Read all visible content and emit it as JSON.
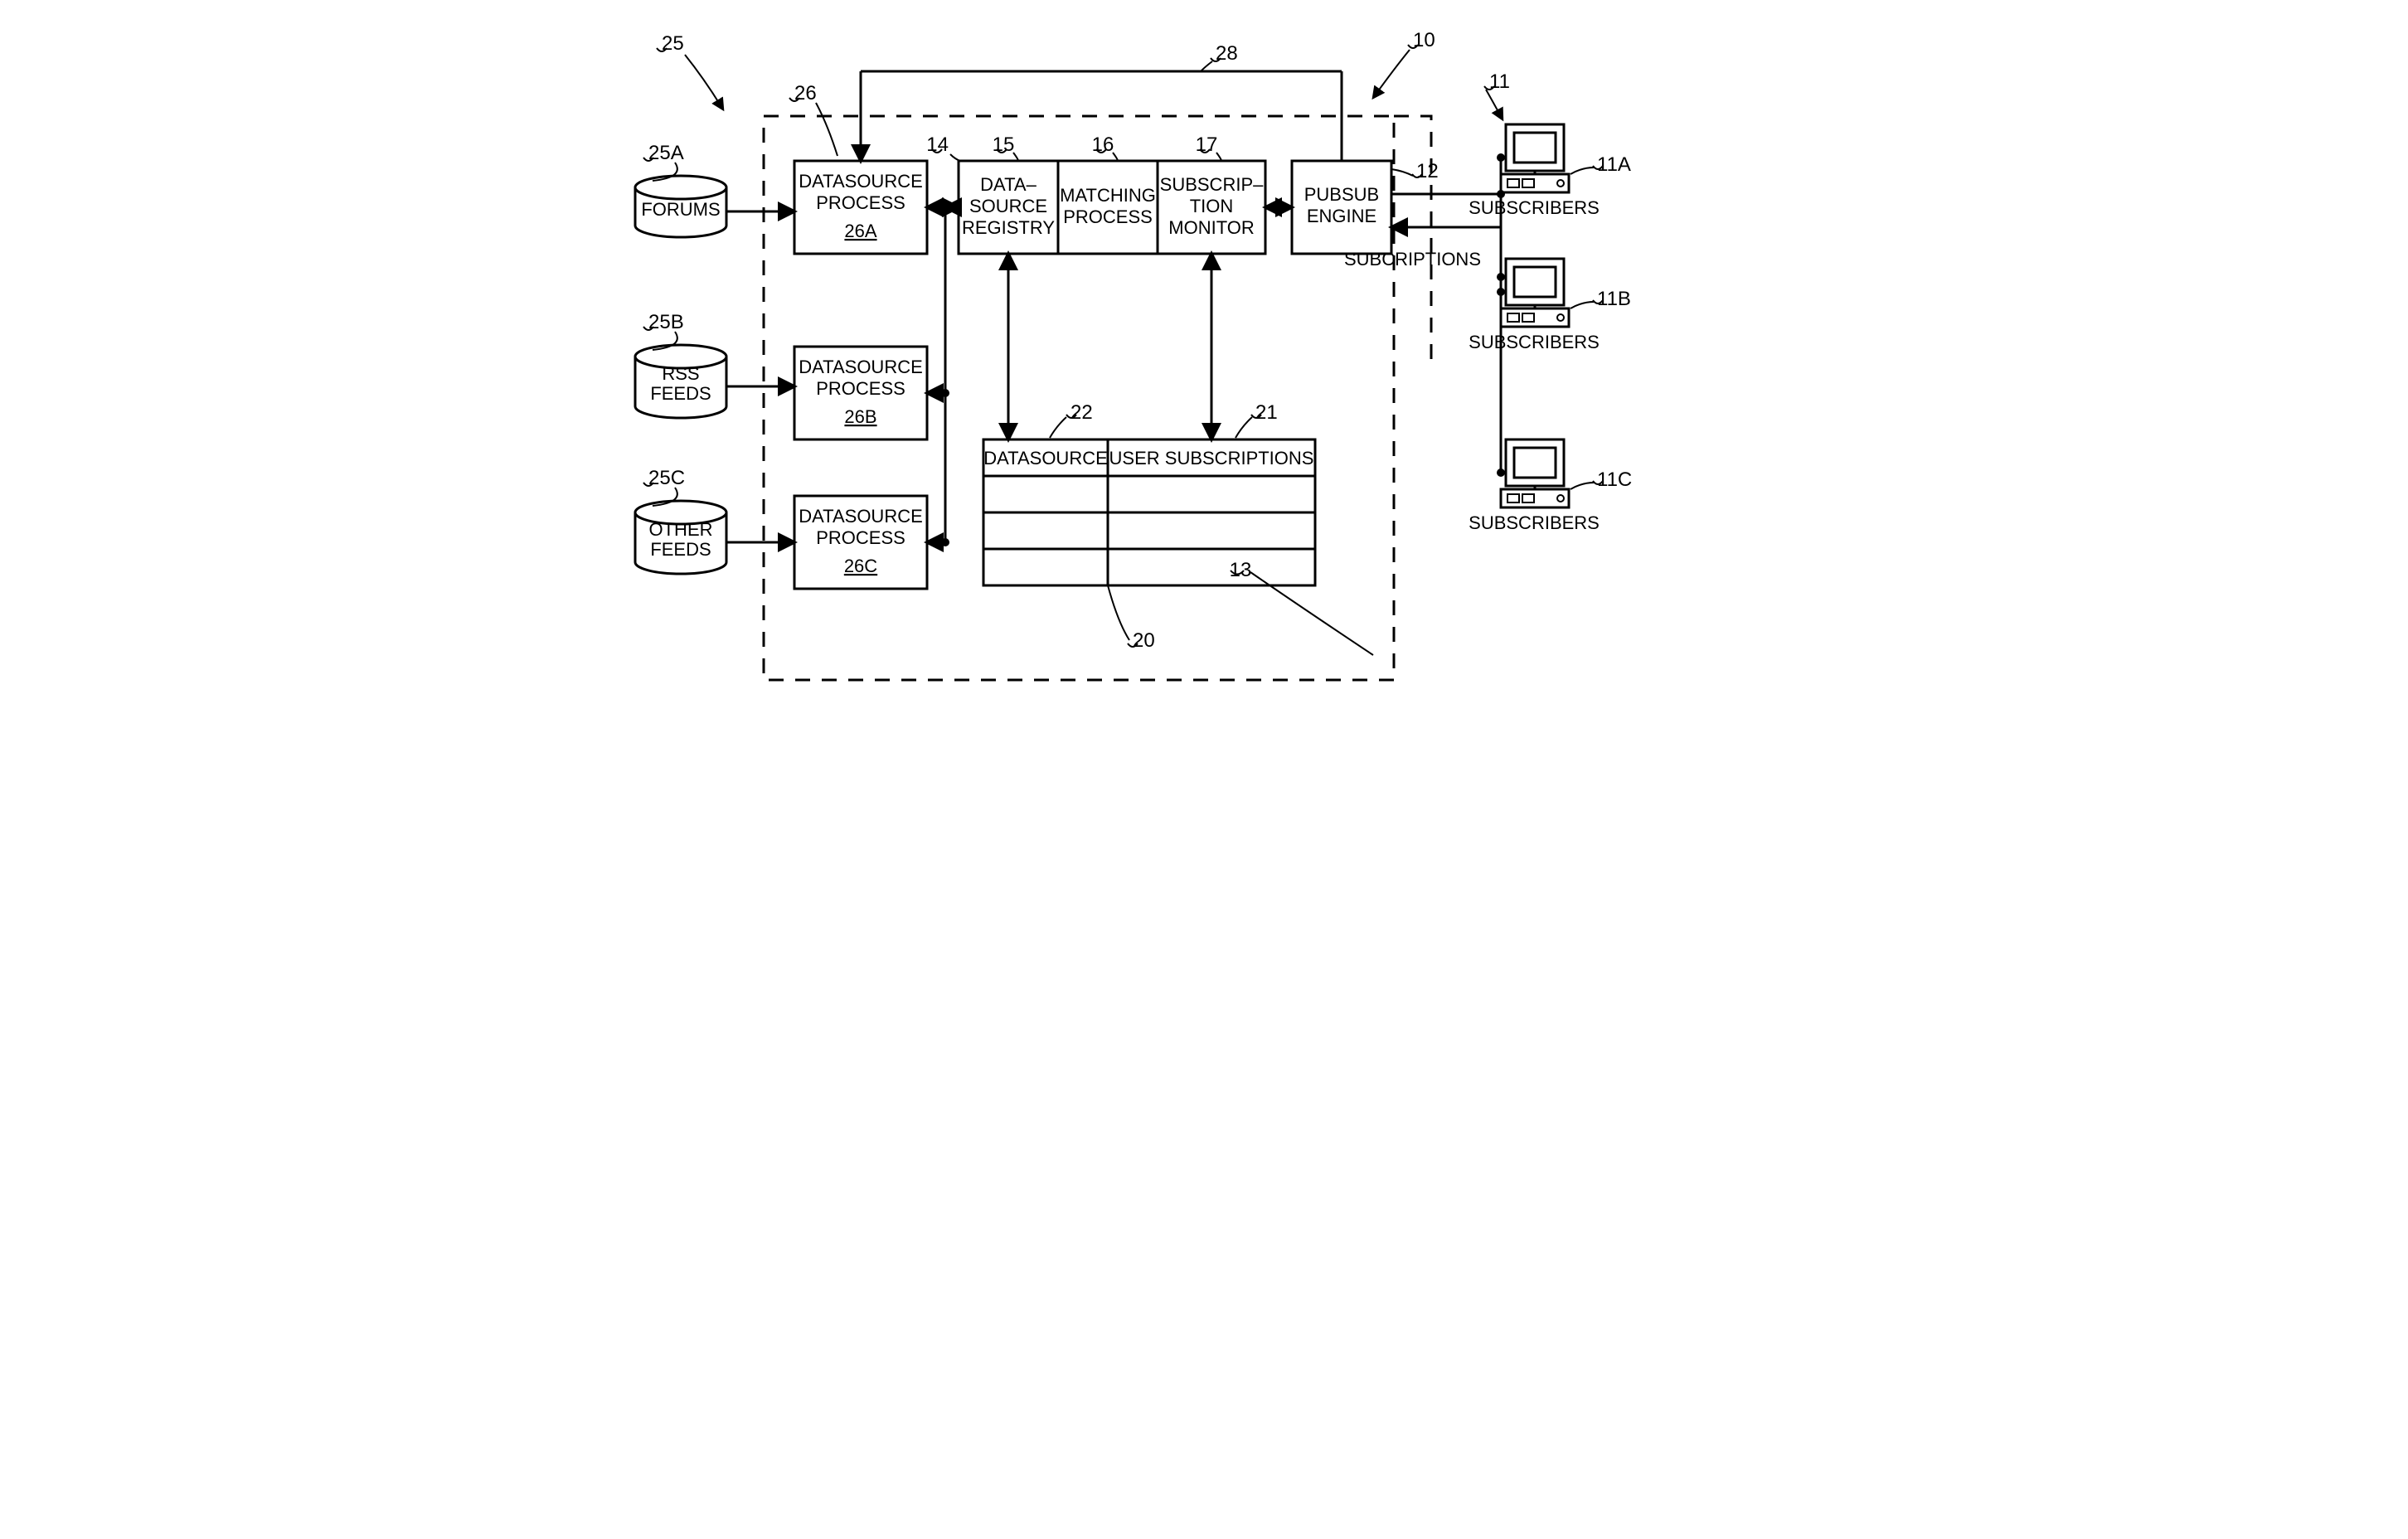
{
  "type": "flowchart",
  "background_color": "#ffffff",
  "stroke_color": "#000000",
  "stroke_width": 3,
  "dash_pattern": "18 14",
  "font_family": "Arial, Helvetica, sans-serif",
  "label_fontsize": 22,
  "ref_fontsize": 24,
  "sources": [
    {
      "id": "25A",
      "label": "FORUMS"
    },
    {
      "id": "25B",
      "label": "RSS FEEDS"
    },
    {
      "id": "25C",
      "label": "OTHER FEEDS"
    }
  ],
  "datasource_processes": [
    {
      "id": "26A",
      "title": "DATASOURCE PROCESS"
    },
    {
      "id": "26B",
      "title": "DATASOURCE PROCESS"
    },
    {
      "id": "26C",
      "title": "DATASOURCE PROCESS"
    }
  ],
  "core_block": {
    "id": "14",
    "cells": [
      {
        "id": "15",
        "lines": [
          "DATA–",
          "SOURCE",
          "REGISTRY"
        ]
      },
      {
        "id": "16",
        "lines": [
          "MATCHING",
          "PROCESS"
        ]
      },
      {
        "id": "17",
        "lines": [
          "SUBSCRIP–",
          "TION",
          "MONITOR"
        ]
      }
    ]
  },
  "table": {
    "id": "20",
    "headers": [
      {
        "id": "22",
        "label": "DATASOURCE"
      },
      {
        "id": "21",
        "label": "USER  SUBSCRIPTIONS"
      }
    ],
    "rows": 3
  },
  "pubsub": {
    "id": "12",
    "lines": [
      "PUBSUB",
      "ENGINE"
    ]
  },
  "subscribers": [
    {
      "id": "11A",
      "label": "SUBSCRIBERS"
    },
    {
      "id": "11B",
      "label": "SUBSCRIBERS"
    },
    {
      "id": "11C",
      "label": "SUBSCRIBERS"
    }
  ],
  "refs": {
    "main": "10",
    "sub_group": "11",
    "subscriptions_label": "SUBCRIPTIONS",
    "container_dash": "13",
    "sources_group": "25",
    "proc_group": "26",
    "top_bus": "28"
  }
}
